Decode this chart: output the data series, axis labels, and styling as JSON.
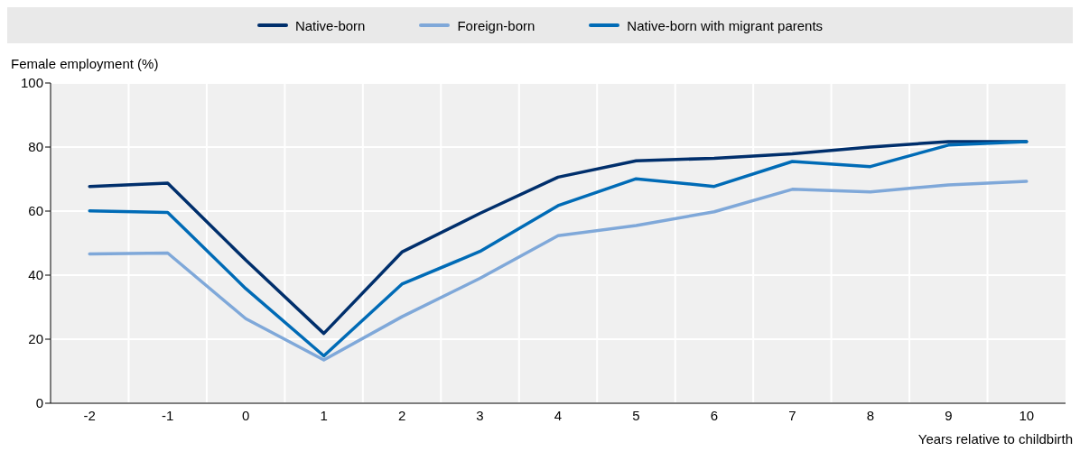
{
  "chart_data": {
    "type": "line",
    "ylabel": "Female employment (%)",
    "xlabel": "Years relative to childbirth",
    "categories": [
      "-2",
      "-1",
      "0",
      "1",
      "2",
      "3",
      "4",
      "5",
      "6",
      "7",
      "8",
      "9",
      "10"
    ],
    "series": [
      {
        "name": "Native-born",
        "color": "#002f6c",
        "values": [
          67.7,
          68.7,
          44.7,
          21.8,
          47.2,
          59.3,
          70.6,
          75.7,
          76.5,
          77.9,
          80,
          81.7,
          81.7
        ]
      },
      {
        "name": "Foreign-born",
        "color": "#7fa8d9",
        "values": [
          46.6,
          46.9,
          26.4,
          13.5,
          27,
          39,
          52.3,
          55.5,
          59.8,
          66.8,
          66,
          68.2,
          69.3
        ]
      },
      {
        "name": "Native-born with migrant parents",
        "color": "#006bb6",
        "values": [
          60.1,
          59.6,
          35.8,
          14.8,
          37.2,
          47.4,
          61.7,
          70.1,
          67.7,
          75.5,
          73.9,
          80.6,
          81.7
        ]
      }
    ],
    "ylim": [
      0,
      100
    ],
    "yticks": [
      0,
      20,
      40,
      60,
      80,
      100
    ],
    "grid": true,
    "legend": "top",
    "marker": "none",
    "line_style": "solid"
  }
}
